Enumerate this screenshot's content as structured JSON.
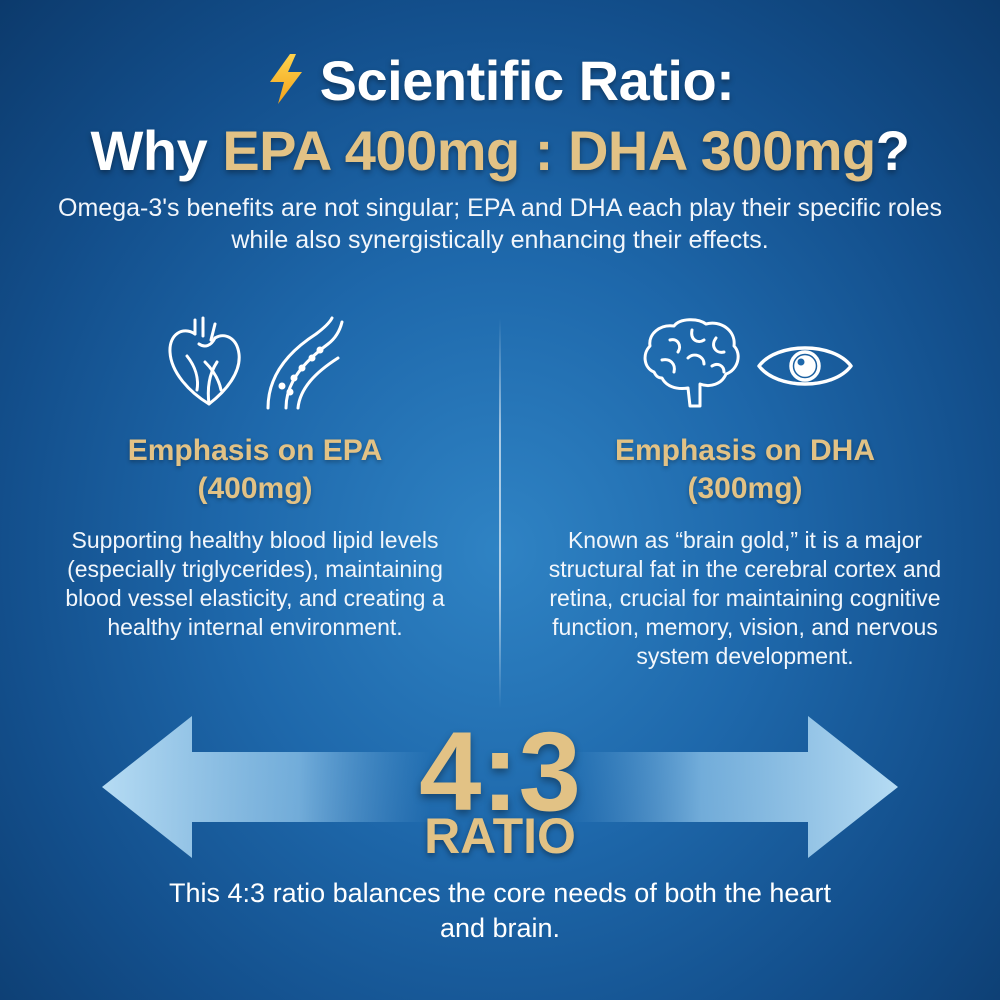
{
  "header": {
    "title_line1": "Scientific Ratio:",
    "title_line2_prefix": "Why ",
    "title_line2_highlight": "EPA 400mg : DHA 300mg",
    "title_line2_suffix": "?",
    "intro": "Omega-3's benefits are not singular; EPA and DHA each play their specific roles while also synergistically enhancing their effects."
  },
  "epa": {
    "icons": [
      "heart-icon",
      "blood-vessel-icon"
    ],
    "title_line1": "Emphasis on EPA",
    "title_line2": "(400mg)",
    "body": "Supporting healthy blood lipid levels (especially triglycerides), maintaining blood vessel elasticity, and creating a healthy internal environment."
  },
  "dha": {
    "icons": [
      "brain-icon",
      "eye-icon"
    ],
    "title_line1": "Emphasis on DHA",
    "title_line2": "(300mg)",
    "body": "Known as “brain gold,” it is a major structural fat in the cerebral cortex and retina, crucial for maintaining cognitive function, memory, vision, and nervous system development."
  },
  "ratio": {
    "value": "4:3",
    "label": "RATIO",
    "footer": "This 4:3 ratio balances the core needs of both the heart and brain."
  },
  "colors": {
    "gold": "#e2c285",
    "background": "#1e68ab",
    "text": "#ffffff",
    "arrow": "#a9d3f0"
  }
}
